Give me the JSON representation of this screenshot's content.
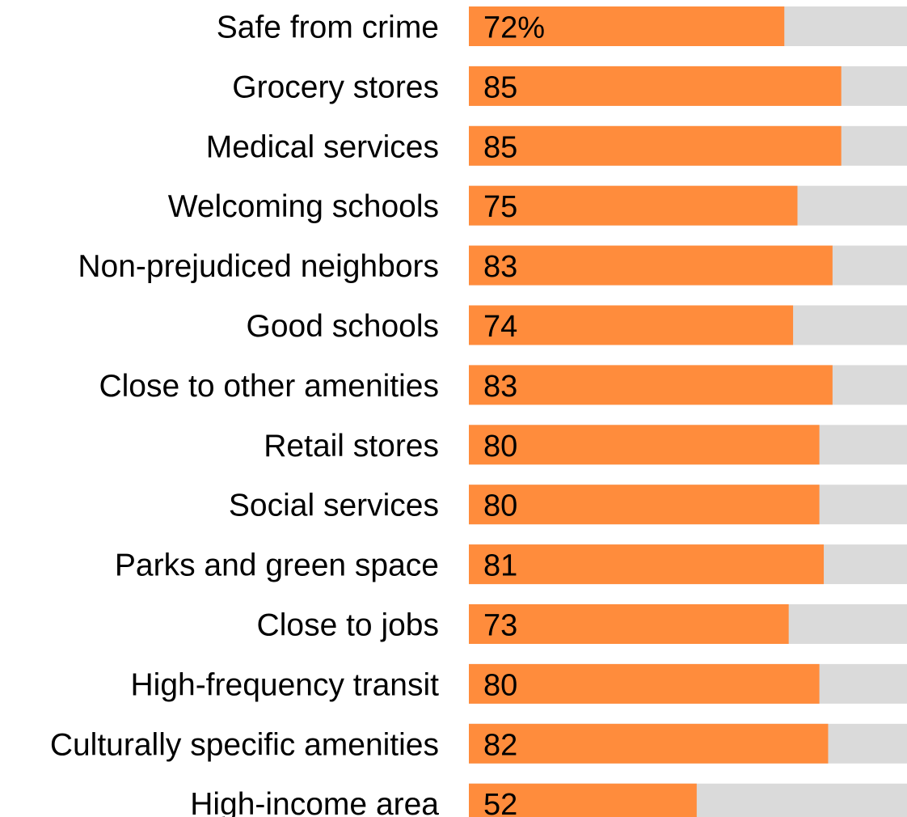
{
  "chart_data": {
    "type": "bar",
    "orientation": "horizontal",
    "categories": [
      "Safe from crime",
      "Grocery stores",
      "Medical services",
      "Welcoming schools",
      "Non-prejudiced neighbors",
      "Good schools",
      "Close to other amenities",
      "Retail stores",
      "Social services",
      "Parks and green space",
      "Close to jobs",
      "High-frequency transit",
      "Culturally specific amenities",
      "High-income area"
    ],
    "values": [
      72,
      85,
      85,
      75,
      83,
      74,
      83,
      80,
      80,
      81,
      73,
      80,
      82,
      52
    ],
    "value_labels": [
      "72%",
      "85",
      "85",
      "75",
      "83",
      "74",
      "83",
      "80",
      "80",
      "81",
      "73",
      "80",
      "82",
      "52"
    ],
    "xlim": [
      0,
      100
    ],
    "colors": {
      "bar": "#FF8C3C",
      "track": "#DADADA"
    },
    "grid": false,
    "legend": "none"
  }
}
